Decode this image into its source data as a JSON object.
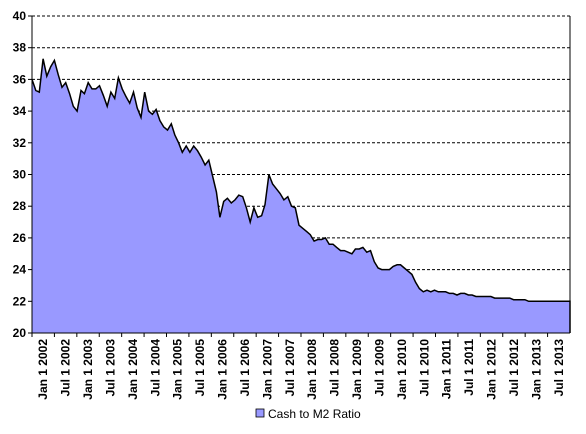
{
  "chart_data": {
    "type": "area",
    "title": "",
    "xlabel": "",
    "ylabel": "",
    "ylim": [
      20,
      40
    ],
    "yticks": [
      20,
      22,
      24,
      26,
      28,
      30,
      32,
      34,
      36,
      38,
      40
    ],
    "grid": "horizontal-dashed",
    "legend_position": "bottom-center",
    "colors": {
      "fill": "#9999ff",
      "line": "#000000",
      "grid": "#000000"
    },
    "x_tick_labels": [
      "Jan 1 2002",
      "Jul 1 2002",
      "Jan 1 2003",
      "Jul 1 2003",
      "Jan 1 2004",
      "Jul 1 2004",
      "Jan 1 2005",
      "Jul 1 2005",
      "Jan 1 2006",
      "Jul 1 2006",
      "Jan 1 2007",
      "Jul 1 2007",
      "Jan 1 2008",
      "Jul 1 2008",
      "Jan 1 2009",
      "Jul 1 2009",
      "Jan 1 2010",
      "Jul 1 2010",
      "Jan 1 2011",
      "Jul 1 2011",
      "Jan 1 2012",
      "Jul 1 2012",
      "Jan 1 2013",
      "Jul 1 2013"
    ],
    "series": [
      {
        "name": "Cash to M2 Ratio",
        "x": [
          "2002-01-01",
          "2002-02-01",
          "2002-03-01",
          "2002-04-01",
          "2002-05-01",
          "2002-06-01",
          "2002-07-01",
          "2002-08-01",
          "2002-09-01",
          "2002-10-01",
          "2002-11-01",
          "2002-12-01",
          "2003-01-01",
          "2003-02-01",
          "2003-03-01",
          "2003-04-01",
          "2003-05-01",
          "2003-06-01",
          "2003-07-01",
          "2003-08-01",
          "2003-09-01",
          "2003-10-01",
          "2003-11-01",
          "2003-12-01",
          "2004-01-01",
          "2004-02-01",
          "2004-03-01",
          "2004-04-01",
          "2004-05-01",
          "2004-06-01",
          "2004-07-01",
          "2004-08-01",
          "2004-09-01",
          "2004-10-01",
          "2004-11-01",
          "2004-12-01",
          "2005-01-01",
          "2005-02-01",
          "2005-03-01",
          "2005-04-01",
          "2005-05-01",
          "2005-06-01",
          "2005-07-01",
          "2005-08-01",
          "2005-09-01",
          "2005-10-01",
          "2005-11-01",
          "2005-12-01",
          "2006-01-01",
          "2006-02-01",
          "2006-03-01",
          "2006-04-01",
          "2006-05-01",
          "2006-06-01",
          "2006-07-01",
          "2006-08-01",
          "2006-09-01",
          "2006-10-01",
          "2006-11-01",
          "2006-12-01",
          "2007-01-01",
          "2007-02-01",
          "2007-03-01",
          "2007-04-01",
          "2007-05-01",
          "2007-06-01",
          "2007-07-01",
          "2007-08-01",
          "2007-09-01",
          "2007-10-01",
          "2007-11-01",
          "2007-12-01",
          "2008-01-01",
          "2008-02-01",
          "2008-03-01",
          "2008-04-01",
          "2008-05-01",
          "2008-06-01",
          "2008-07-01",
          "2008-08-01",
          "2008-09-01",
          "2008-10-01",
          "2008-11-01",
          "2008-12-01",
          "2009-01-01",
          "2009-02-01",
          "2009-03-01",
          "2009-04-01",
          "2009-05-01",
          "2009-06-01",
          "2009-07-01",
          "2009-08-01",
          "2009-09-01",
          "2009-10-01",
          "2009-11-01",
          "2009-12-01",
          "2010-01-01",
          "2010-02-01",
          "2010-03-01",
          "2010-04-01",
          "2010-05-01",
          "2010-06-01",
          "2010-07-01",
          "2010-08-01",
          "2010-09-01",
          "2010-10-01",
          "2010-11-01",
          "2010-12-01",
          "2011-01-01",
          "2011-02-01",
          "2011-03-01",
          "2011-04-01",
          "2011-05-01",
          "2011-06-01",
          "2011-07-01",
          "2011-08-01",
          "2011-09-01",
          "2011-10-01",
          "2011-11-01",
          "2011-12-01",
          "2012-01-01",
          "2012-02-01",
          "2012-03-01",
          "2012-04-01",
          "2012-05-01",
          "2012-06-01",
          "2012-07-01",
          "2012-08-01",
          "2012-09-01",
          "2012-10-01",
          "2012-11-01",
          "2012-12-01",
          "2013-01-01",
          "2013-02-01",
          "2013-03-01",
          "2013-04-01",
          "2013-05-01",
          "2013-06-01",
          "2013-07-01",
          "2013-08-01",
          "2013-09-01",
          "2013-10-01",
          "2013-11-01",
          "2013-12-01"
        ],
        "values": [
          36.0,
          35.3,
          35.2,
          37.3,
          36.2,
          36.8,
          37.2,
          36.3,
          35.5,
          35.8,
          35.1,
          34.3,
          34.0,
          35.3,
          35.1,
          35.8,
          35.4,
          35.4,
          35.6,
          35.0,
          34.3,
          35.2,
          34.8,
          36.1,
          35.4,
          34.9,
          34.5,
          35.2,
          34.2,
          33.6,
          35.2,
          34.0,
          33.8,
          34.1,
          33.4,
          33.0,
          32.8,
          33.2,
          32.5,
          32.0,
          31.4,
          31.8,
          31.4,
          31.8,
          31.5,
          31.1,
          30.6,
          30.9,
          29.9,
          28.9,
          27.3,
          28.3,
          28.5,
          28.2,
          28.4,
          28.7,
          28.6,
          27.9,
          27.0,
          27.9,
          27.3,
          27.4,
          28.1,
          30.0,
          29.4,
          29.1,
          28.8,
          28.4,
          28.6,
          28.0,
          27.9,
          26.8,
          26.6,
          26.4,
          26.2,
          25.8,
          25.9,
          25.9,
          26.0,
          25.6,
          25.6,
          25.4,
          25.2,
          25.2,
          25.1,
          25.0,
          25.3,
          25.3,
          25.4,
          25.1,
          25.2,
          24.5,
          24.1,
          24.0,
          24.0,
          24.0,
          24.2,
          24.3,
          24.3,
          24.1,
          23.9,
          23.7,
          23.2,
          22.8,
          22.6,
          22.7,
          22.6,
          22.7,
          22.6,
          22.6,
          22.6,
          22.5,
          22.5,
          22.4,
          22.5,
          22.5,
          22.4,
          22.4,
          22.3,
          22.3,
          22.3,
          22.3,
          22.3,
          22.2,
          22.2,
          22.2,
          22.2,
          22.2,
          22.1,
          22.1,
          22.1,
          22.1,
          22.0,
          22.0,
          22.0,
          22.0,
          22.0,
          22.0,
          22.0,
          22.0,
          22.0,
          22.0,
          22.0,
          22.0
        ]
      }
    ]
  }
}
